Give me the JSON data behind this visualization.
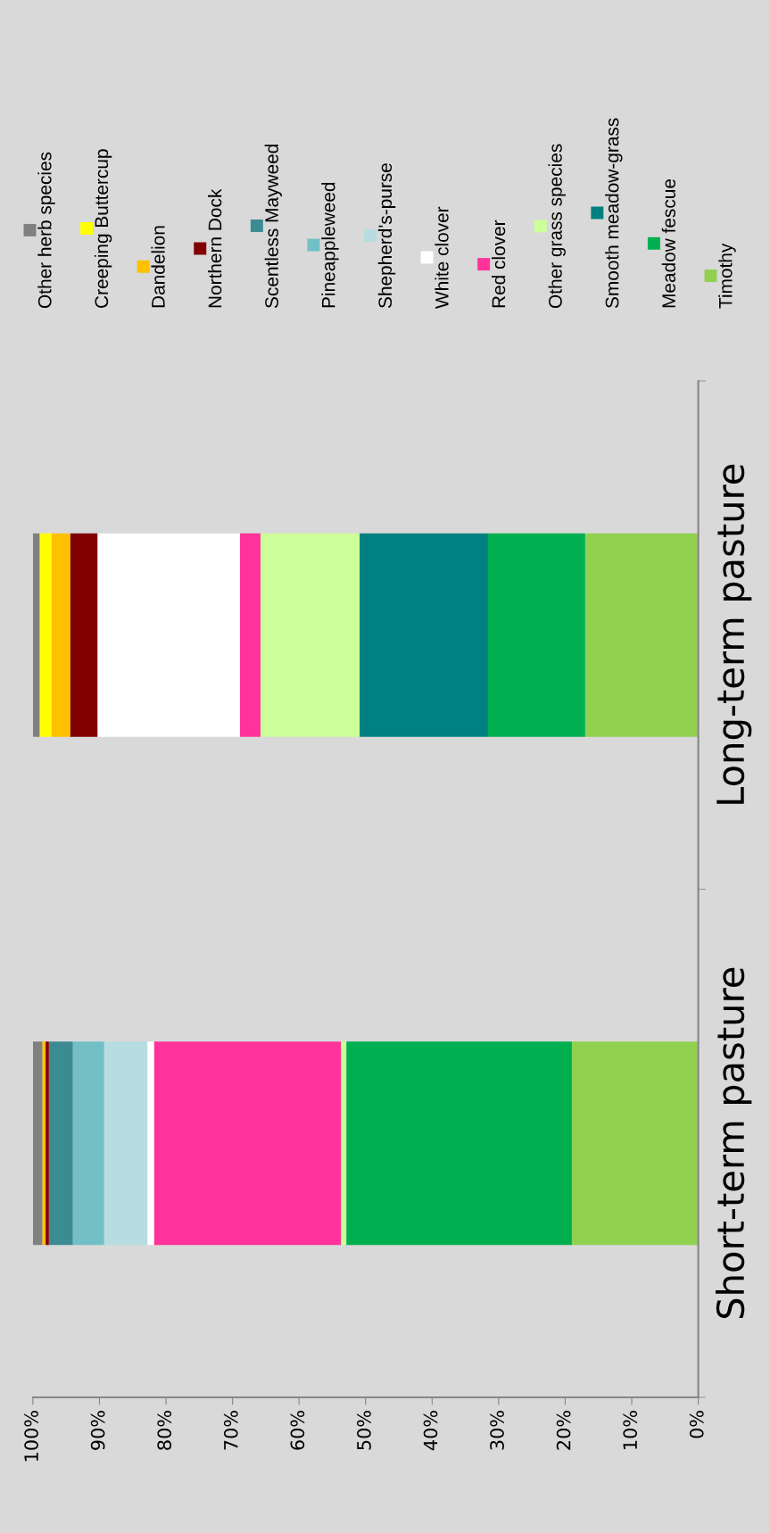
{
  "chart_data": {
    "type": "bar",
    "orientation": "horizontal",
    "stacked": true,
    "categories": [
      "Long-term pasture",
      "Short-term pasture"
    ],
    "xlim": [
      100,
      0
    ],
    "xticks": [
      {
        "value": 100,
        "label": "100%"
      },
      {
        "value": 90,
        "label": "90%"
      },
      {
        "value": 80,
        "label": "80%"
      },
      {
        "value": 70,
        "label": "70%"
      },
      {
        "value": 60,
        "label": "60%"
      },
      {
        "value": 50,
        "label": "50%"
      },
      {
        "value": 40,
        "label": "40%"
      },
      {
        "value": 30,
        "label": "30%"
      },
      {
        "value": 20,
        "label": "20%"
      },
      {
        "value": 10,
        "label": "10%"
      },
      {
        "value": 0,
        "label": "0%"
      }
    ],
    "grid": false,
    "legend": "top",
    "series": [
      {
        "name": "Timothy",
        "color": "#92d050",
        "values": [
          17.0,
          19.0
        ]
      },
      {
        "name": "Meadow fescue",
        "color": "#00b050",
        "values": [
          14.6,
          33.9
        ]
      },
      {
        "name": "Smooth meadow-grass",
        "color": "#008080",
        "values": [
          19.3,
          0
        ]
      },
      {
        "name": "Other grass species",
        "color": "#ccff99",
        "values": [
          14.9,
          0.8
        ]
      },
      {
        "name": "Red clover",
        "color": "#ff3399",
        "values": [
          3.1,
          28.1
        ]
      },
      {
        "name": "White clover",
        "color": "#ffffff",
        "values": [
          21.4,
          1.0
        ]
      },
      {
        "name": "Shepherd's-purse",
        "color": "#b7dde1",
        "values": [
          0,
          6.5
        ]
      },
      {
        "name": "Pineappleweed",
        "color": "#72c0c6",
        "values": [
          0,
          4.7
        ]
      },
      {
        "name": "Scentless Mayweed",
        "color": "#3b8b93",
        "values": [
          0,
          3.6
        ]
      },
      {
        "name": "Northern Dock",
        "color": "#800000",
        "values": [
          4.1,
          0.5
        ]
      },
      {
        "name": "Dandelion",
        "color": "#ffc000",
        "values": [
          2.8,
          0.5
        ]
      },
      {
        "name": "Creeping Buttercup",
        "color": "#ffff00",
        "values": [
          1.8,
          0
        ]
      },
      {
        "name": "Other herb species",
        "color": "#808080",
        "values": [
          1.0,
          1.4
        ]
      }
    ]
  }
}
